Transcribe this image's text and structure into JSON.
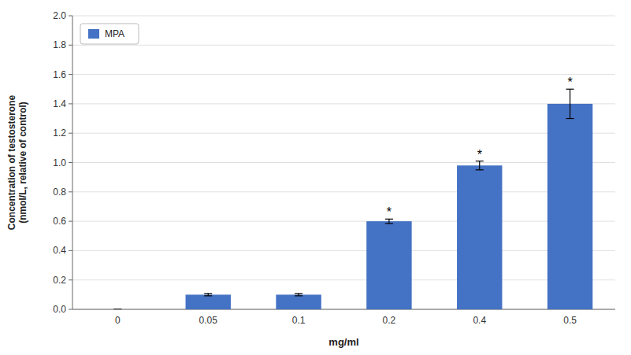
{
  "chart_data": {
    "type": "bar",
    "categories": [
      "0",
      "0.05",
      "0.1",
      "0.2",
      "0.4",
      "0.5"
    ],
    "series": [
      {
        "name": "MPA",
        "color": "#4472C4",
        "values": [
          0.0,
          0.1,
          0.1,
          0.6,
          0.98,
          1.4
        ],
        "errors": [
          0.0,
          0.008,
          0.008,
          0.015,
          0.03,
          0.1
        ]
      }
    ],
    "xlabel": "mg/ml",
    "ylabel": "Concentration of testosterone\n(nmol/L, relative of control)",
    "ylim": [
      0.0,
      2.0
    ],
    "yticks": [
      {
        "value": 0.0,
        "label": "0.0"
      },
      0.2,
      0.4,
      0.6,
      0.8,
      {
        "value": 1.0,
        "label": "1.0"
      },
      1.2,
      1.4,
      1.6,
      1.8,
      {
        "value": 2.0,
        "label": "2.0"
      }
    ],
    "annotations": [
      {
        "text": "*",
        "x": "0.2"
      },
      {
        "text": "*",
        "x": "0.4"
      },
      {
        "text": "*",
        "x": "0.5"
      }
    ],
    "grid": true,
    "legend": "upper left"
  }
}
